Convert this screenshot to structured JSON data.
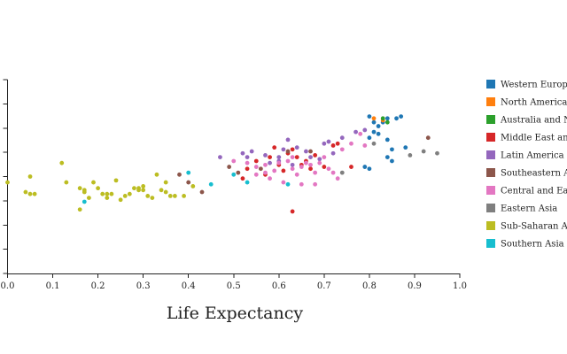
{
  "chart_data": {
    "type": "scatter",
    "xlabel": "Life Expectancy",
    "ylabel": "",
    "xlim": [
      0,
      1
    ],
    "ylim": [
      0,
      1
    ],
    "x_ticks": [
      "0.0",
      "0.1",
      "0.2",
      "0.3",
      "0.4",
      "0.5",
      "0.6",
      "0.7",
      "0.8",
      "0.9",
      "1.0"
    ],
    "grid": false,
    "legend_position": "right",
    "series": [
      {
        "name": "Western Europe",
        "color": "#1f77b4",
        "points": [
          [
            0.8,
            0.81
          ],
          [
            0.81,
            0.78
          ],
          [
            0.82,
            0.76
          ],
          [
            0.83,
            0.78
          ],
          [
            0.84,
            0.8
          ],
          [
            0.86,
            0.8
          ],
          [
            0.87,
            0.81
          ],
          [
            0.8,
            0.7
          ],
          [
            0.84,
            0.69
          ],
          [
            0.85,
            0.64
          ],
          [
            0.84,
            0.6
          ],
          [
            0.85,
            0.58
          ],
          [
            0.88,
            0.65
          ],
          [
            0.82,
            0.72
          ],
          [
            0.81,
            0.73
          ],
          [
            0.79,
            0.55
          ],
          [
            0.8,
            0.54
          ]
        ]
      },
      {
        "name": "North America",
        "color": "#ff7f0e",
        "points": [
          [
            0.81,
            0.8
          ],
          [
            0.83,
            0.79
          ]
        ]
      },
      {
        "name": "Australia and New Zealand",
        "color": "#2ca02c",
        "points": [
          [
            0.83,
            0.8
          ],
          [
            0.84,
            0.78
          ]
        ]
      },
      {
        "name": "Middle East and Northern Africa",
        "color": "#d62728",
        "points": [
          [
            0.63,
            0.32
          ],
          [
            0.52,
            0.49
          ],
          [
            0.57,
            0.51
          ],
          [
            0.6,
            0.56
          ],
          [
            0.62,
            0.62
          ],
          [
            0.64,
            0.6
          ],
          [
            0.66,
            0.58
          ],
          [
            0.68,
            0.61
          ],
          [
            0.72,
            0.66
          ],
          [
            0.73,
            0.67
          ],
          [
            0.59,
            0.65
          ],
          [
            0.55,
            0.58
          ],
          [
            0.61,
            0.53
          ],
          [
            0.67,
            0.54
          ],
          [
            0.7,
            0.55
          ],
          [
            0.76,
            0.55
          ],
          [
            0.53,
            0.54
          ],
          [
            0.58,
            0.6
          ],
          [
            0.65,
            0.56
          ],
          [
            0.63,
            0.64
          ]
        ]
      },
      {
        "name": "Latin America and Caribbean",
        "color": "#9467bd",
        "points": [
          [
            0.52,
            0.62
          ],
          [
            0.54,
            0.63
          ],
          [
            0.57,
            0.61
          ],
          [
            0.61,
            0.64
          ],
          [
            0.62,
            0.69
          ],
          [
            0.64,
            0.65
          ],
          [
            0.66,
            0.63
          ],
          [
            0.69,
            0.59
          ],
          [
            0.7,
            0.67
          ],
          [
            0.71,
            0.68
          ],
          [
            0.72,
            0.62
          ],
          [
            0.74,
            0.7
          ],
          [
            0.77,
            0.73
          ],
          [
            0.79,
            0.74
          ],
          [
            0.47,
            0.6
          ],
          [
            0.53,
            0.6
          ],
          [
            0.58,
            0.57
          ],
          [
            0.6,
            0.6
          ],
          [
            0.63,
            0.56
          ],
          [
            0.67,
            0.6
          ],
          [
            0.6,
            0.58
          ]
        ]
      },
      {
        "name": "Southeastern Asia",
        "color": "#8c564b",
        "points": [
          [
            0.43,
            0.42
          ],
          [
            0.4,
            0.47
          ],
          [
            0.49,
            0.55
          ],
          [
            0.56,
            0.54
          ],
          [
            0.62,
            0.63
          ],
          [
            0.67,
            0.63
          ],
          [
            0.93,
            0.7
          ],
          [
            0.38,
            0.51
          ],
          [
            0.51,
            0.52
          ]
        ]
      },
      {
        "name": "Central and Eastern Europe",
        "color": "#e377c2",
        "points": [
          [
            0.53,
            0.57
          ],
          [
            0.55,
            0.55
          ],
          [
            0.57,
            0.52
          ],
          [
            0.59,
            0.53
          ],
          [
            0.6,
            0.57
          ],
          [
            0.62,
            0.58
          ],
          [
            0.63,
            0.54
          ],
          [
            0.64,
            0.51
          ],
          [
            0.65,
            0.55
          ],
          [
            0.66,
            0.57
          ],
          [
            0.67,
            0.56
          ],
          [
            0.68,
            0.52
          ],
          [
            0.69,
            0.57
          ],
          [
            0.7,
            0.6
          ],
          [
            0.71,
            0.54
          ],
          [
            0.73,
            0.49
          ],
          [
            0.74,
            0.64
          ],
          [
            0.76,
            0.67
          ],
          [
            0.78,
            0.72
          ],
          [
            0.79,
            0.66
          ],
          [
            0.55,
            0.51
          ],
          [
            0.58,
            0.49
          ],
          [
            0.61,
            0.47
          ],
          [
            0.65,
            0.46
          ],
          [
            0.68,
            0.46
          ],
          [
            0.72,
            0.52
          ],
          [
            0.63,
            0.6
          ],
          [
            0.5,
            0.58
          ],
          [
            0.57,
            0.56
          ]
        ]
      },
      {
        "name": "Eastern Asia",
        "color": "#7f7f7f",
        "points": [
          [
            0.95,
            0.62
          ],
          [
            0.92,
            0.63
          ],
          [
            0.89,
            0.61
          ],
          [
            0.81,
            0.67
          ],
          [
            0.74,
            0.52
          ]
        ]
      },
      {
        "name": "Sub-Saharan Africa",
        "color": "#bcbd22",
        "points": [
          [
            0.0,
            0.47
          ],
          [
            0.04,
            0.42
          ],
          [
            0.05,
            0.41
          ],
          [
            0.06,
            0.41
          ],
          [
            0.05,
            0.5
          ],
          [
            0.12,
            0.57
          ],
          [
            0.13,
            0.47
          ],
          [
            0.16,
            0.44
          ],
          [
            0.17,
            0.42
          ],
          [
            0.18,
            0.39
          ],
          [
            0.19,
            0.47
          ],
          [
            0.2,
            0.44
          ],
          [
            0.21,
            0.41
          ],
          [
            0.22,
            0.39
          ],
          [
            0.23,
            0.41
          ],
          [
            0.24,
            0.48
          ],
          [
            0.25,
            0.38
          ],
          [
            0.27,
            0.41
          ],
          [
            0.28,
            0.44
          ],
          [
            0.29,
            0.43
          ],
          [
            0.3,
            0.43
          ],
          [
            0.3,
            0.45
          ],
          [
            0.31,
            0.4
          ],
          [
            0.32,
            0.39
          ],
          [
            0.34,
            0.43
          ],
          [
            0.35,
            0.42
          ],
          [
            0.35,
            0.47
          ],
          [
            0.36,
            0.4
          ],
          [
            0.37,
            0.4
          ],
          [
            0.39,
            0.4
          ],
          [
            0.41,
            0.45
          ],
          [
            0.33,
            0.51
          ],
          [
            0.16,
            0.33
          ],
          [
            0.22,
            0.41
          ],
          [
            0.17,
            0.43
          ],
          [
            0.26,
            0.4
          ],
          [
            0.29,
            0.44
          ]
        ]
      },
      {
        "name": "Southern Asia",
        "color": "#17becf",
        "points": [
          [
            0.17,
            0.37
          ],
          [
            0.4,
            0.52
          ],
          [
            0.45,
            0.46
          ],
          [
            0.5,
            0.51
          ],
          [
            0.53,
            0.47
          ],
          [
            0.62,
            0.46
          ]
        ]
      }
    ]
  }
}
